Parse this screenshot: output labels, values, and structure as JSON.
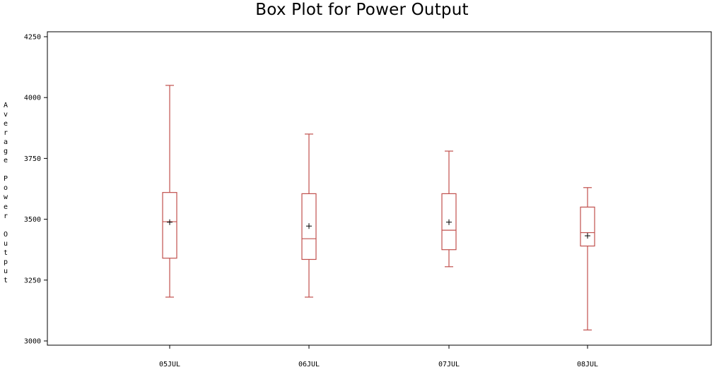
{
  "chart_data": {
    "type": "box",
    "title": "Box Plot for Power Output",
    "xlabel": "",
    "ylabel": "Average Power Output",
    "ylim": [
      3000,
      4250
    ],
    "y_ticks": [
      3000,
      3250,
      3500,
      3750,
      4000,
      4250
    ],
    "categories": [
      "05JUL",
      "06JUL",
      "07JUL",
      "08JUL"
    ],
    "boxes": [
      {
        "category": "05JUL",
        "min": 3180,
        "q1": 3340,
        "median": 3490,
        "q3": 3610,
        "max": 4050,
        "mean": 3488
      },
      {
        "category": "06JUL",
        "min": 3180,
        "q1": 3335,
        "median": 3420,
        "q3": 3605,
        "max": 3850,
        "mean": 3472
      },
      {
        "category": "07JUL",
        "min": 3305,
        "q1": 3375,
        "median": 3455,
        "q3": 3605,
        "max": 3780,
        "mean": 3488
      },
      {
        "category": "08JUL",
        "min": 3045,
        "q1": 3390,
        "median": 3445,
        "q3": 3550,
        "max": 3630,
        "mean": 3432
      }
    ],
    "box_color": "#c0504d",
    "mean_marker": "+",
    "grid": false,
    "legend": "none"
  }
}
